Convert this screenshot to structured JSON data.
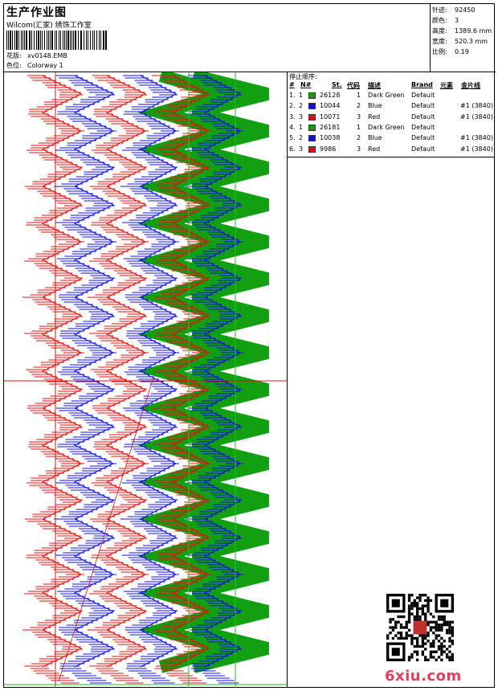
{
  "header": {
    "title": "生产作业图",
    "subtitle": "Wilcom(汇家) 绣饰工作室",
    "pattern_label": "花版:",
    "pattern_value": "xv0148.EMB",
    "colorway_label": "色位:",
    "colorway_value": "Colorway 1"
  },
  "info": [
    {
      "key": "针迹:",
      "value": "92450"
    },
    {
      "key": "颜色:",
      "value": "3"
    },
    {
      "key": "高度:",
      "value": "1389.6 mm"
    },
    {
      "key": "宽度:",
      "value": "520.3 mm"
    },
    {
      "key": "比例:",
      "value": "0.19"
    }
  ],
  "stop_table": {
    "caption": "停止顺序:",
    "headers": {
      "idx": "#",
      "n": "N#",
      "st": "St.",
      "code": "代码",
      "desc": "描述",
      "brand": "Brand",
      "elem": "元素",
      "sequin": "金片线"
    },
    "rows": [
      {
        "idx": "1.",
        "n": "1",
        "color": "#12a012",
        "st": "26128",
        "code": "1",
        "desc": "Dark Green",
        "brand": "Default",
        "seq": ""
      },
      {
        "idx": "2.",
        "n": "2",
        "color": "#1010e0",
        "st": "10044",
        "code": "2",
        "desc": "Blue",
        "brand": "Default",
        "seq": "#1 (3840)"
      },
      {
        "idx": "3.",
        "n": "3",
        "color": "#e01010",
        "st": "10071",
        "code": "3",
        "desc": "Red",
        "brand": "Default",
        "seq": "#1 (3840)"
      },
      {
        "idx": "4.",
        "n": "1",
        "color": "#12a012",
        "st": "26181",
        "code": "1",
        "desc": "Dark Green",
        "brand": "Default",
        "seq": ""
      },
      {
        "idx": "5.",
        "n": "2",
        "color": "#1010e0",
        "st": "10038",
        "code": "2",
        "desc": "Blue",
        "brand": "Default",
        "seq": "#1 (3840)"
      },
      {
        "idx": "6.",
        "n": "3",
        "color": "#e01010",
        "st": "9986",
        "code": "3",
        "desc": "Red",
        "brand": "Default",
        "seq": "#1 (3840)"
      }
    ]
  },
  "watermark": "6xiu.com",
  "colors": {
    "green": "#12a012",
    "blue": "#1010e0",
    "red": "#e01010",
    "guide_green": "#22c022"
  }
}
